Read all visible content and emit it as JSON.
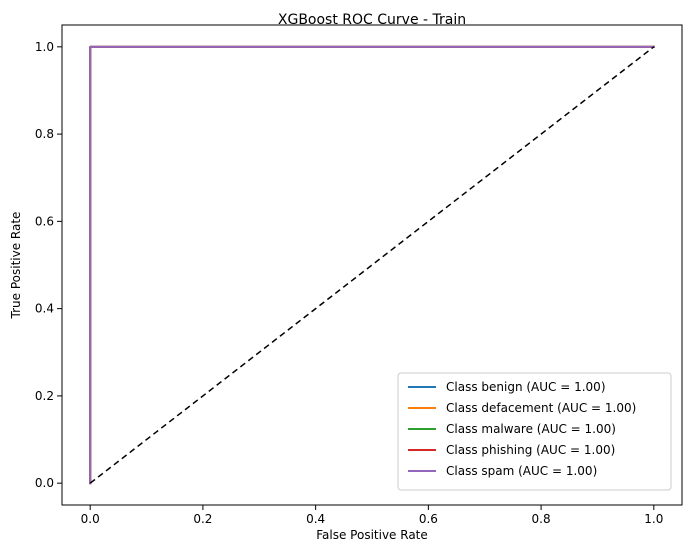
{
  "chart_data": {
    "type": "line",
    "title": "XGBoost ROC Curve - Train",
    "xlabel": "False Positive Rate",
    "ylabel": "True Positive Rate",
    "xlim": [
      -0.05,
      1.05
    ],
    "ylim": [
      -0.05,
      1.05
    ],
    "xticks": [
      0.0,
      0.2,
      0.4,
      0.6,
      0.8,
      1.0
    ],
    "yticks": [
      0.0,
      0.2,
      0.4,
      0.6,
      0.8,
      1.0
    ],
    "tick_labels_x": [
      "0.0",
      "0.2",
      "0.4",
      "0.6",
      "0.8",
      "1.0"
    ],
    "tick_labels_y": [
      "0.0",
      "0.2",
      "0.4",
      "0.6",
      "0.8",
      "1.0"
    ],
    "grid": false,
    "legend_position": "lower-right",
    "series": [
      {
        "name": "Class benign (AUC = 1.00)",
        "color": "#1f77b4",
        "x": [
          0.0,
          0.0,
          1.0
        ],
        "y": [
          0.0,
          1.0,
          1.0
        ]
      },
      {
        "name": "Class defacement (AUC = 1.00)",
        "color": "#ff7f0e",
        "x": [
          0.0,
          0.0,
          1.0
        ],
        "y": [
          0.0,
          1.0,
          1.0
        ]
      },
      {
        "name": "Class malware (AUC = 1.00)",
        "color": "#2ca02c",
        "x": [
          0.0,
          0.0,
          1.0
        ],
        "y": [
          0.0,
          1.0,
          1.0
        ]
      },
      {
        "name": "Class phishing (AUC = 1.00)",
        "color": "#d62728",
        "x": [
          0.0,
          0.0,
          1.0
        ],
        "y": [
          0.0,
          1.0,
          1.0
        ]
      },
      {
        "name": "Class spam (AUC = 1.00)",
        "color": "#9467bd",
        "x": [
          0.0,
          0.0,
          1.0
        ],
        "y": [
          0.0,
          1.0,
          1.0
        ]
      }
    ],
    "reference_line": {
      "x": [
        0.0,
        1.0
      ],
      "y": [
        0.0,
        1.0
      ],
      "color": "#000000",
      "style": "dashed"
    }
  }
}
